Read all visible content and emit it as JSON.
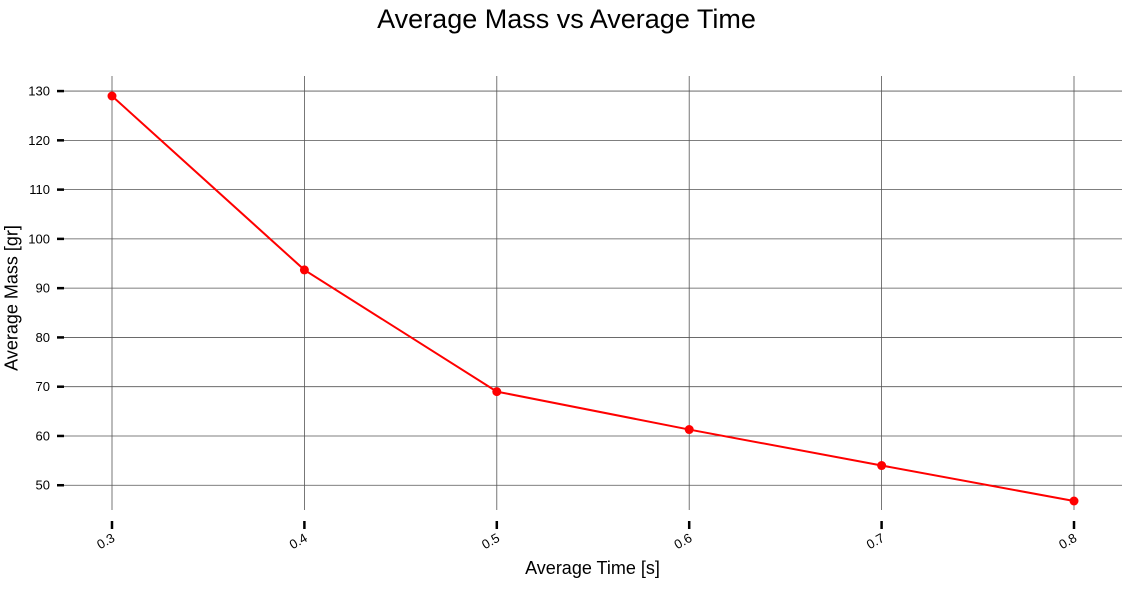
{
  "chart_data": {
    "type": "line",
    "title": "Average Mass vs Average Time",
    "xlabel": "Average Time [s]",
    "ylabel": "Average Mass [gr]",
    "x": [
      0.3,
      0.4,
      0.5,
      0.6,
      0.7,
      0.8
    ],
    "x_tick_labels": [
      "0.3",
      "0.4",
      "0.5",
      "0.6",
      "0.7",
      "0.8"
    ],
    "y_ticks": [
      50,
      60,
      70,
      80,
      90,
      100,
      110,
      120,
      130
    ],
    "y_tick_labels": [
      "50",
      "60",
      "70",
      "80",
      "90",
      "100",
      "110",
      "120",
      "130"
    ],
    "xlim": [
      0.3,
      0.8
    ],
    "ylim": [
      46.8,
      129
    ],
    "grid": true,
    "legend": "none",
    "series": [
      {
        "color": "#ff0000",
        "values": [
          129.0,
          93.7,
          69.0,
          61.3,
          54.0,
          46.8
        ]
      }
    ]
  }
}
